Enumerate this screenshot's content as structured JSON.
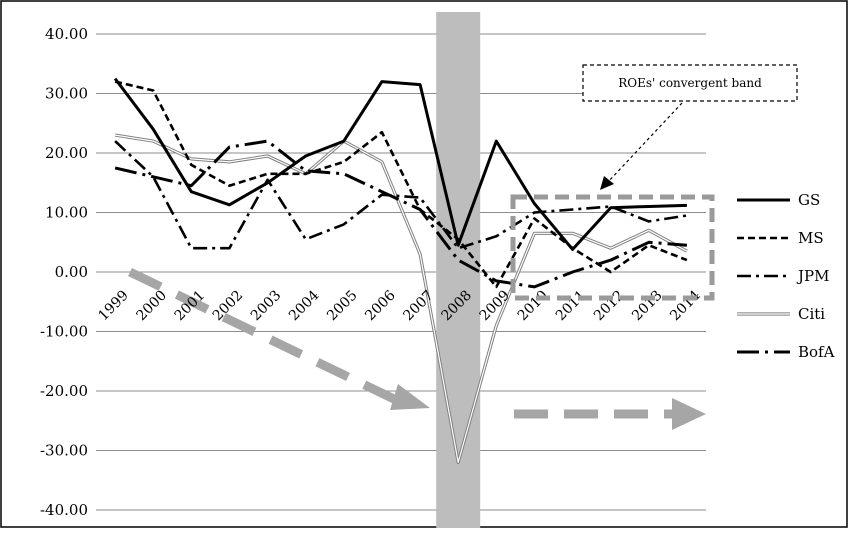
{
  "chart_data": {
    "type": "line",
    "categories": [
      "1999",
      "2000",
      "2001",
      "2002",
      "2003",
      "2004",
      "2005",
      "2006",
      "2007",
      "2008",
      "2009",
      "2010",
      "2011",
      "2012",
      "2013",
      "2014"
    ],
    "ylim": [
      -40,
      40
    ],
    "yticks": [
      40,
      30,
      20,
      10,
      0,
      -10,
      -20,
      -30,
      -40
    ],
    "ytick_labels": [
      "40.00",
      "30.00",
      "20.00",
      "10.00",
      "0.00",
      "-10.00",
      "-20.00",
      "-30.00",
      "-40.00"
    ],
    "grid": "horizontal",
    "legend_position": "right",
    "series": [
      {
        "name": "GS",
        "style": "solid",
        "color": "#000000",
        "values": [
          32.5,
          24.0,
          13.5,
          11.3,
          15.0,
          19.5,
          22.0,
          32.0,
          31.5,
          4.5,
          22.0,
          11.5,
          3.8,
          10.8,
          11.0,
          11.2
        ]
      },
      {
        "name": "MS",
        "style": "dashed",
        "color": "#000000",
        "values": [
          32.0,
          30.5,
          18.0,
          14.5,
          16.5,
          16.5,
          18.5,
          23.5,
          10.5,
          5.5,
          -2.5,
          9.0,
          4.0,
          0.0,
          4.5,
          2.0
        ]
      },
      {
        "name": "JPM",
        "style": "dash-dot",
        "color": "#000000",
        "values": [
          22.0,
          16.0,
          4.0,
          4.0,
          15.5,
          5.5,
          8.0,
          13.0,
          12.5,
          4.0,
          6.0,
          10.0,
          10.5,
          11.0,
          8.5,
          9.5
        ]
      },
      {
        "name": "Citi",
        "style": "double",
        "color": "#808080",
        "values": [
          23.0,
          22.0,
          19.0,
          18.5,
          19.5,
          16.5,
          22.0,
          18.5,
          3.0,
          -32.0,
          -9.0,
          6.5,
          6.5,
          4.0,
          7.0,
          3.5
        ]
      },
      {
        "name": "BofA",
        "style": "long-dash-dot",
        "color": "#000000",
        "values": [
          17.5,
          16.0,
          14.5,
          21.0,
          22.0,
          17.0,
          16.5,
          13.5,
          10.5,
          2.0,
          -1.5,
          -2.5,
          0.0,
          2.0,
          5.0,
          4.5
        ]
      }
    ],
    "annotations": {
      "recession_band": {
        "category": "2008"
      },
      "callout_label": "ROEs' convergent band"
    }
  }
}
